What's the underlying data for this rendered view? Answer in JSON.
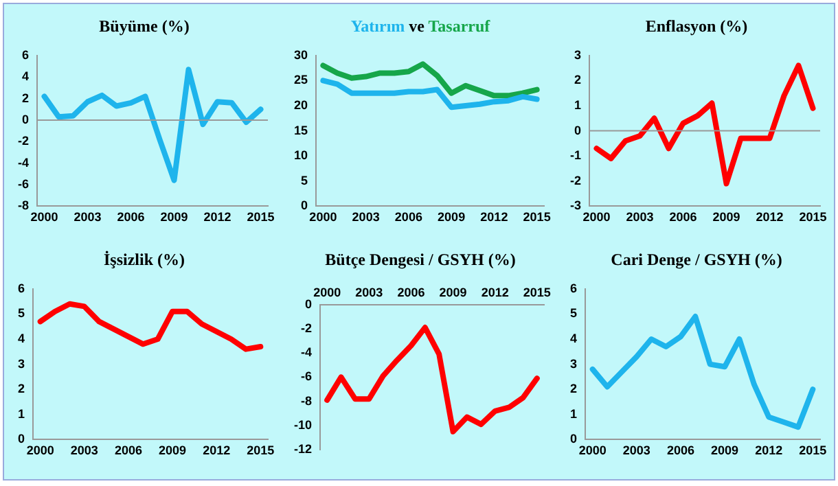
{
  "chart_data": [
    {
      "type": "line",
      "title": "Büyüme (%)",
      "categories": [
        "2000",
        null,
        null,
        "2003",
        null,
        null,
        "2006",
        null,
        null,
        "2009",
        null,
        null,
        "2012",
        null,
        null,
        "2015"
      ],
      "series": [
        {
          "color": "#1eb4ec",
          "values": [
            2.2,
            0.3,
            0.4,
            1.7,
            2.3,
            1.3,
            1.6,
            2.2,
            -1.8,
            -5.6,
            4.7,
            -0.4,
            1.7,
            1.6,
            -0.2,
            1.0
          ]
        }
      ],
      "ylim": [
        -8,
        6
      ],
      "yticks": [
        -8,
        -6,
        -4,
        -2,
        0,
        2,
        4,
        6
      ],
      "ref_lines": [
        {
          "axis": "y",
          "value": 0,
          "color": "#999999"
        }
      ],
      "grid": false,
      "legend": false,
      "marker": "none",
      "line_style": "solid"
    },
    {
      "type": "line",
      "annotations": [
        "ve"
      ],
      "categories": [
        "2000",
        null,
        null,
        "2003",
        null,
        null,
        "2006",
        null,
        null,
        "2009",
        null,
        null,
        "2012",
        null,
        null,
        "2015"
      ],
      "series": [
        {
          "name": "Yatırım",
          "color": "#1eb4ec",
          "values": [
            25,
            24.3,
            22.5,
            22.5,
            22.5,
            22.5,
            22.8,
            22.8,
            23.2,
            19.7,
            20,
            20.3,
            20.8,
            21,
            21.8,
            21.3
          ]
        },
        {
          "name": "Tasarruf",
          "color": "#16a64a",
          "values": [
            28,
            26.5,
            25.5,
            25.8,
            26.5,
            26.5,
            26.8,
            28.3,
            26,
            22.5,
            24,
            23,
            22,
            22,
            22.5,
            23.2
          ]
        }
      ],
      "ylim": [
        0,
        30
      ],
      "yticks": [
        0,
        5,
        10,
        15,
        20,
        25,
        30
      ],
      "grid": false,
      "legend": false,
      "marker": "none",
      "line_style": "solid"
    },
    {
      "type": "line",
      "title": "Enflasyon (%)",
      "categories": [
        "2000",
        null,
        null,
        "2003",
        null,
        null,
        "2006",
        null,
        null,
        "2009",
        null,
        null,
        "2012",
        null,
        null,
        "2015"
      ],
      "series": [
        {
          "color": "#ff0000",
          "values": [
            -0.7,
            -1.1,
            -0.4,
            -0.2,
            0.5,
            -0.7,
            0.3,
            0.6,
            1.1,
            -2.1,
            -0.3,
            -0.3,
            -0.3,
            1.4,
            2.6,
            0.9
          ]
        }
      ],
      "ylim": [
        -3,
        3
      ],
      "yticks": [
        -3,
        -2,
        -1,
        0,
        1,
        2,
        3
      ],
      "ref_lines": [
        {
          "axis": "y",
          "value": 0,
          "color": "#999999"
        }
      ],
      "grid": false,
      "legend": false,
      "marker": "none",
      "line_style": "solid"
    },
    {
      "type": "line",
      "title": "İşsizlik (%)",
      "categories": [
        "2000",
        null,
        null,
        "2003",
        null,
        null,
        "2006",
        null,
        null,
        "2009",
        null,
        null,
        "2012",
        null,
        null,
        "2015"
      ],
      "series": [
        {
          "color": "#ff0000",
          "values": [
            4.7,
            5.1,
            5.4,
            5.3,
            4.7,
            4.4,
            4.1,
            3.8,
            4.0,
            5.1,
            5.1,
            4.6,
            4.3,
            4.0,
            3.6,
            3.7
          ]
        }
      ],
      "ylim": [
        0,
        6
      ],
      "yticks": [
        0,
        1,
        2,
        3,
        4,
        5,
        6
      ],
      "grid": false,
      "legend": false,
      "marker": "none",
      "line_style": "solid"
    },
    {
      "type": "line",
      "title": "Bütçe Dengesi / GSYH (%)",
      "categories": [
        "2000",
        null,
        null,
        "2003",
        null,
        null,
        "2006",
        null,
        null,
        "2009",
        null,
        null,
        "2012",
        null,
        null,
        "2015"
      ],
      "series": [
        {
          "color": "#ff0000",
          "values": [
            -7.9,
            -6,
            -7.8,
            -7.8,
            -5.9,
            -4.6,
            -3.4,
            -1.9,
            -4.1,
            -10.5,
            -9.3,
            -9.9,
            -8.8,
            -8.5,
            -7.7,
            -6.1
          ]
        }
      ],
      "ylim": [
        -12,
        0
      ],
      "yticks": [
        -12,
        -10,
        -8,
        -6,
        -4,
        -2,
        0
      ],
      "grid": false,
      "legend": false,
      "marker": "none",
      "line_style": "solid"
    },
    {
      "type": "line",
      "title": "Cari Denge / GSYH (%)",
      "categories": [
        "2000",
        null,
        null,
        "2003",
        null,
        null,
        "2006",
        null,
        null,
        "2009",
        null,
        null,
        "2012",
        null,
        null,
        "2015"
      ],
      "series": [
        {
          "color": "#1eb4ec",
          "values": [
            2.8,
            2.1,
            2.7,
            3.3,
            4.0,
            3.7,
            4.1,
            4.9,
            3.0,
            2.9,
            4.0,
            2.2,
            0.9,
            0.7,
            0.5,
            2.0
          ]
        }
      ],
      "ylim": [
        0,
        6
      ],
      "yticks": [
        0,
        1,
        2,
        3,
        4,
        5,
        6
      ],
      "grid": false,
      "legend": false,
      "marker": "none",
      "line_style": "solid"
    }
  ]
}
